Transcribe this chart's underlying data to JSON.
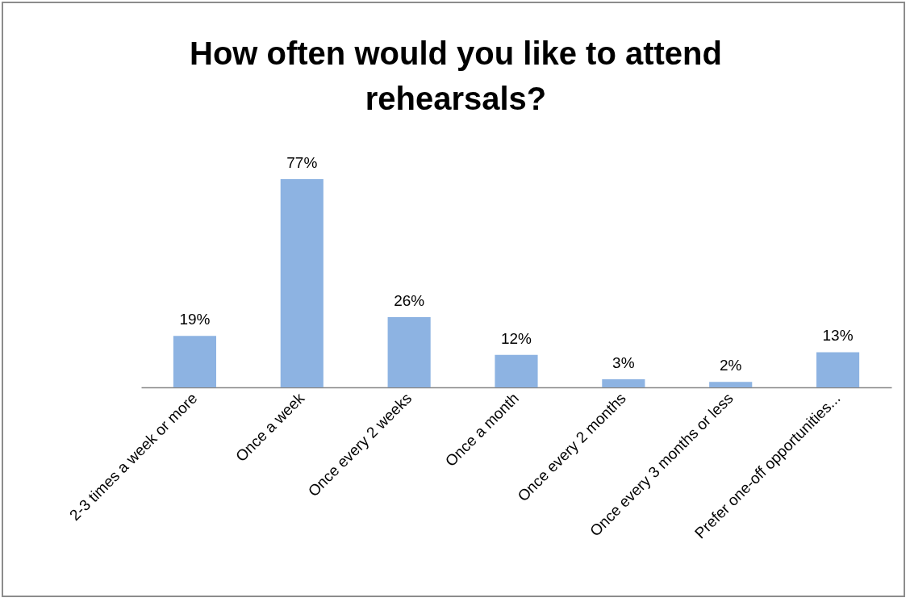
{
  "chart_data": {
    "type": "bar",
    "title": "How often would you like to attend rehearsals?",
    "categories": [
      "2-3 times a week or more",
      "Once a week",
      "Once every 2 weeks",
      "Once a month",
      "Once every 2 months",
      "Once every 3 months or less",
      "Prefer one-off opportunities..."
    ],
    "values": [
      19,
      77,
      26,
      12,
      3,
      2,
      13
    ],
    "value_labels": [
      "19%",
      "77%",
      "26%",
      "12%",
      "3%",
      "2%",
      "13%"
    ],
    "color": "#8db3e2",
    "grid": false
  }
}
